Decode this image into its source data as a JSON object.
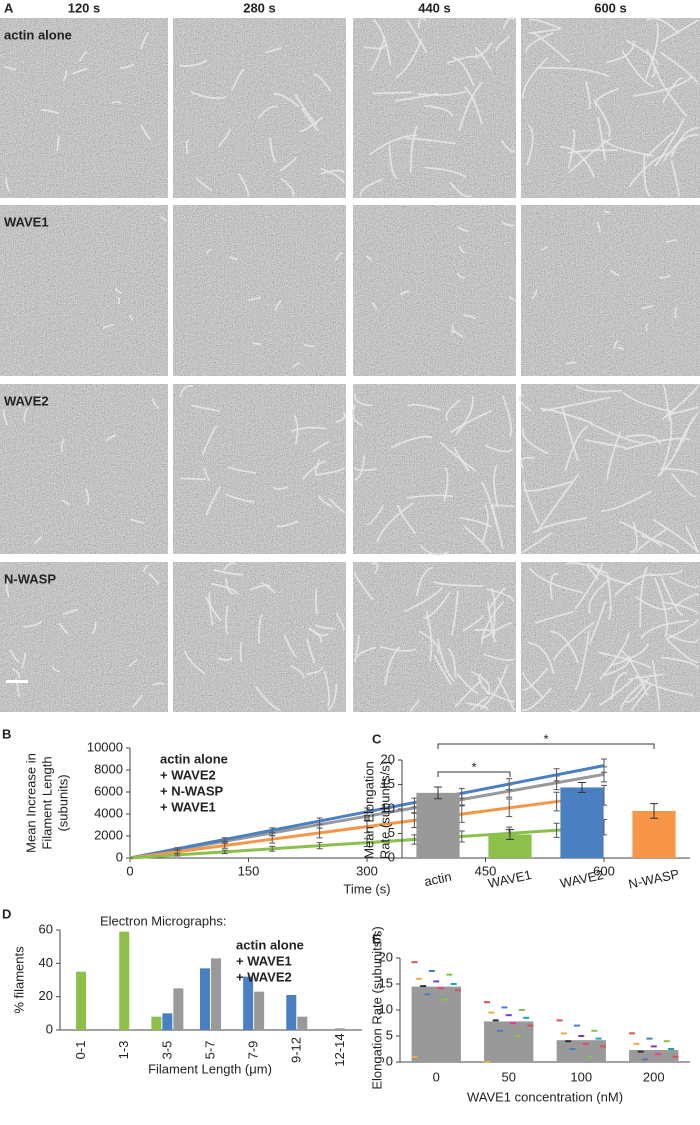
{
  "figure": {
    "panel_a": {
      "label": "A",
      "timepoints": [
        "120 s",
        "280 s",
        "440 s",
        "600 s"
      ],
      "conditions": [
        {
          "name": "actin alone",
          "color": "#ffffff"
        },
        {
          "name": "WAVE1",
          "color": "#8dc04b"
        },
        {
          "name": "WAVE2",
          "color": "#4a7fc1"
        },
        {
          "name": "N-WASP",
          "color": "#f79646"
        }
      ]
    }
  },
  "chart_data": [
    {
      "type": "line",
      "label": "B",
      "ylabel": [
        "Mean Increase in",
        "Filament Length",
        "(subunits)"
      ],
      "xlabel": "Time (s)",
      "x": [
        0,
        60,
        120,
        180,
        240,
        300,
        360,
        420,
        480,
        540,
        600
      ],
      "xlim": [
        0,
        600
      ],
      "xticks": [
        0,
        150,
        300,
        450,
        600
      ],
      "ylim": [
        0,
        10000
      ],
      "yticks": [
        0,
        2000,
        4000,
        6000,
        8000,
        10000
      ],
      "series": [
        {
          "name": "actin alone",
          "color": "#999999",
          "values": [
            0,
            760,
            1520,
            2280,
            3040,
            3800,
            4560,
            5320,
            6080,
            6840,
            7600
          ],
          "errors": [
            0,
            100,
            180,
            260,
            320,
            380,
            440,
            500,
            560,
            620,
            680
          ]
        },
        {
          "name": "+ WAVE2",
          "color": "#4a7fc1",
          "values": [
            0,
            840,
            1680,
            2520,
            3360,
            4200,
            5040,
            5880,
            6720,
            7560,
            8400
          ],
          "errors": [
            0,
            90,
            160,
            220,
            280,
            340,
            400,
            450,
            500,
            550,
            600
          ]
        },
        {
          "name": "+ N-WASP",
          "color": "#f79646",
          "values": [
            0,
            570,
            1140,
            1710,
            2280,
            2850,
            3420,
            3990,
            4560,
            5130,
            5700
          ],
          "errors": [
            0,
            150,
            250,
            350,
            450,
            550,
            650,
            750,
            800,
            850,
            900
          ]
        },
        {
          "name": "+ WAVE1",
          "color": "#8dc04b",
          "values": [
            0,
            280,
            560,
            840,
            1120,
            1400,
            1680,
            1960,
            2240,
            2520,
            2800
          ],
          "errors": [
            0,
            100,
            160,
            220,
            280,
            350,
            420,
            500,
            570,
            640,
            700
          ]
        }
      ]
    },
    {
      "type": "bar",
      "label": "C",
      "ylabel": [
        "Mean Elongation",
        "Rate (subunits/s)"
      ],
      "categories": [
        "actin",
        "WAVE1",
        "WAVE2",
        "N-WASP"
      ],
      "values": [
        13.3,
        4.8,
        14.4,
        9.6
      ],
      "errors": [
        1.2,
        1.0,
        1.0,
        1.5
      ],
      "colors": [
        "#999999",
        "#8dc04b",
        "#4a7fc1",
        "#f79646"
      ],
      "ylim": [
        0,
        20
      ],
      "yticks": [
        0,
        5,
        10,
        15,
        20
      ],
      "comparisons": [
        [
          "actin",
          "WAVE1"
        ],
        [
          "actin",
          "N-WASP"
        ]
      ],
      "annotations": [
        "*",
        "*"
      ]
    },
    {
      "type": "grouped_bar",
      "label": "D",
      "title": "Electron Micrographs:",
      "ylabel": "% filaments",
      "xlabel": "Filament Length (μm)",
      "categories": [
        "0-1",
        "1-3",
        "3-5",
        "5-7",
        "7-9",
        "9-12",
        "12-14"
      ],
      "ylim": [
        0,
        60
      ],
      "yticks": [
        0,
        20,
        40,
        60
      ],
      "series": [
        {
          "name": "+ WAVE1",
          "color": "#8dc04b",
          "values": [
            35,
            59,
            8,
            null,
            null,
            null,
            null
          ]
        },
        {
          "name": "+ WAVE2",
          "color": "#4a7fc1",
          "values": [
            null,
            null,
            10,
            37,
            32,
            21,
            null
          ]
        },
        {
          "name": "actin alone",
          "color": "#999999",
          "values": [
            null,
            null,
            25,
            43,
            23,
            8,
            1
          ]
        }
      ],
      "legend_order": [
        "actin alone",
        "+ WAVE1",
        "+ WAVE2"
      ]
    },
    {
      "type": "bar_scatter",
      "label": "E",
      "ylabel": "Elongation Rate (subunits/s)",
      "xlabel": "WAVE1 concentration (nM)",
      "categories": [
        "0",
        "50",
        "100",
        "200"
      ],
      "values": [
        14.5,
        7.8,
        4.2,
        2.3
      ],
      "color": "#999999",
      "ylim": [
        0,
        20
      ],
      "yticks": [
        0,
        5,
        10,
        15,
        20
      ],
      "points": [
        [
          19.2,
          17.5,
          16.8,
          16,
          15.5,
          15,
          14.6,
          14.2,
          13.8,
          13,
          12,
          1
        ],
        [
          11.5,
          10.5,
          10,
          9.5,
          9,
          8.5,
          8,
          7.5,
          7,
          6,
          5,
          0
        ],
        [
          8,
          7,
          6,
          5.5,
          5,
          4.5,
          4,
          3.5,
          3,
          2.5,
          1
        ],
        [
          5.5,
          4.5,
          4,
          3.5,
          3,
          2.5,
          2,
          1.5,
          1,
          0.5
        ]
      ],
      "point_colors": [
        "#d9534f",
        "#4a7fc1",
        "#8dc04b",
        "#f0ad4e",
        "#6f42c1",
        "#17a2b8",
        "#333333",
        "#e83e8c"
      ]
    }
  ]
}
